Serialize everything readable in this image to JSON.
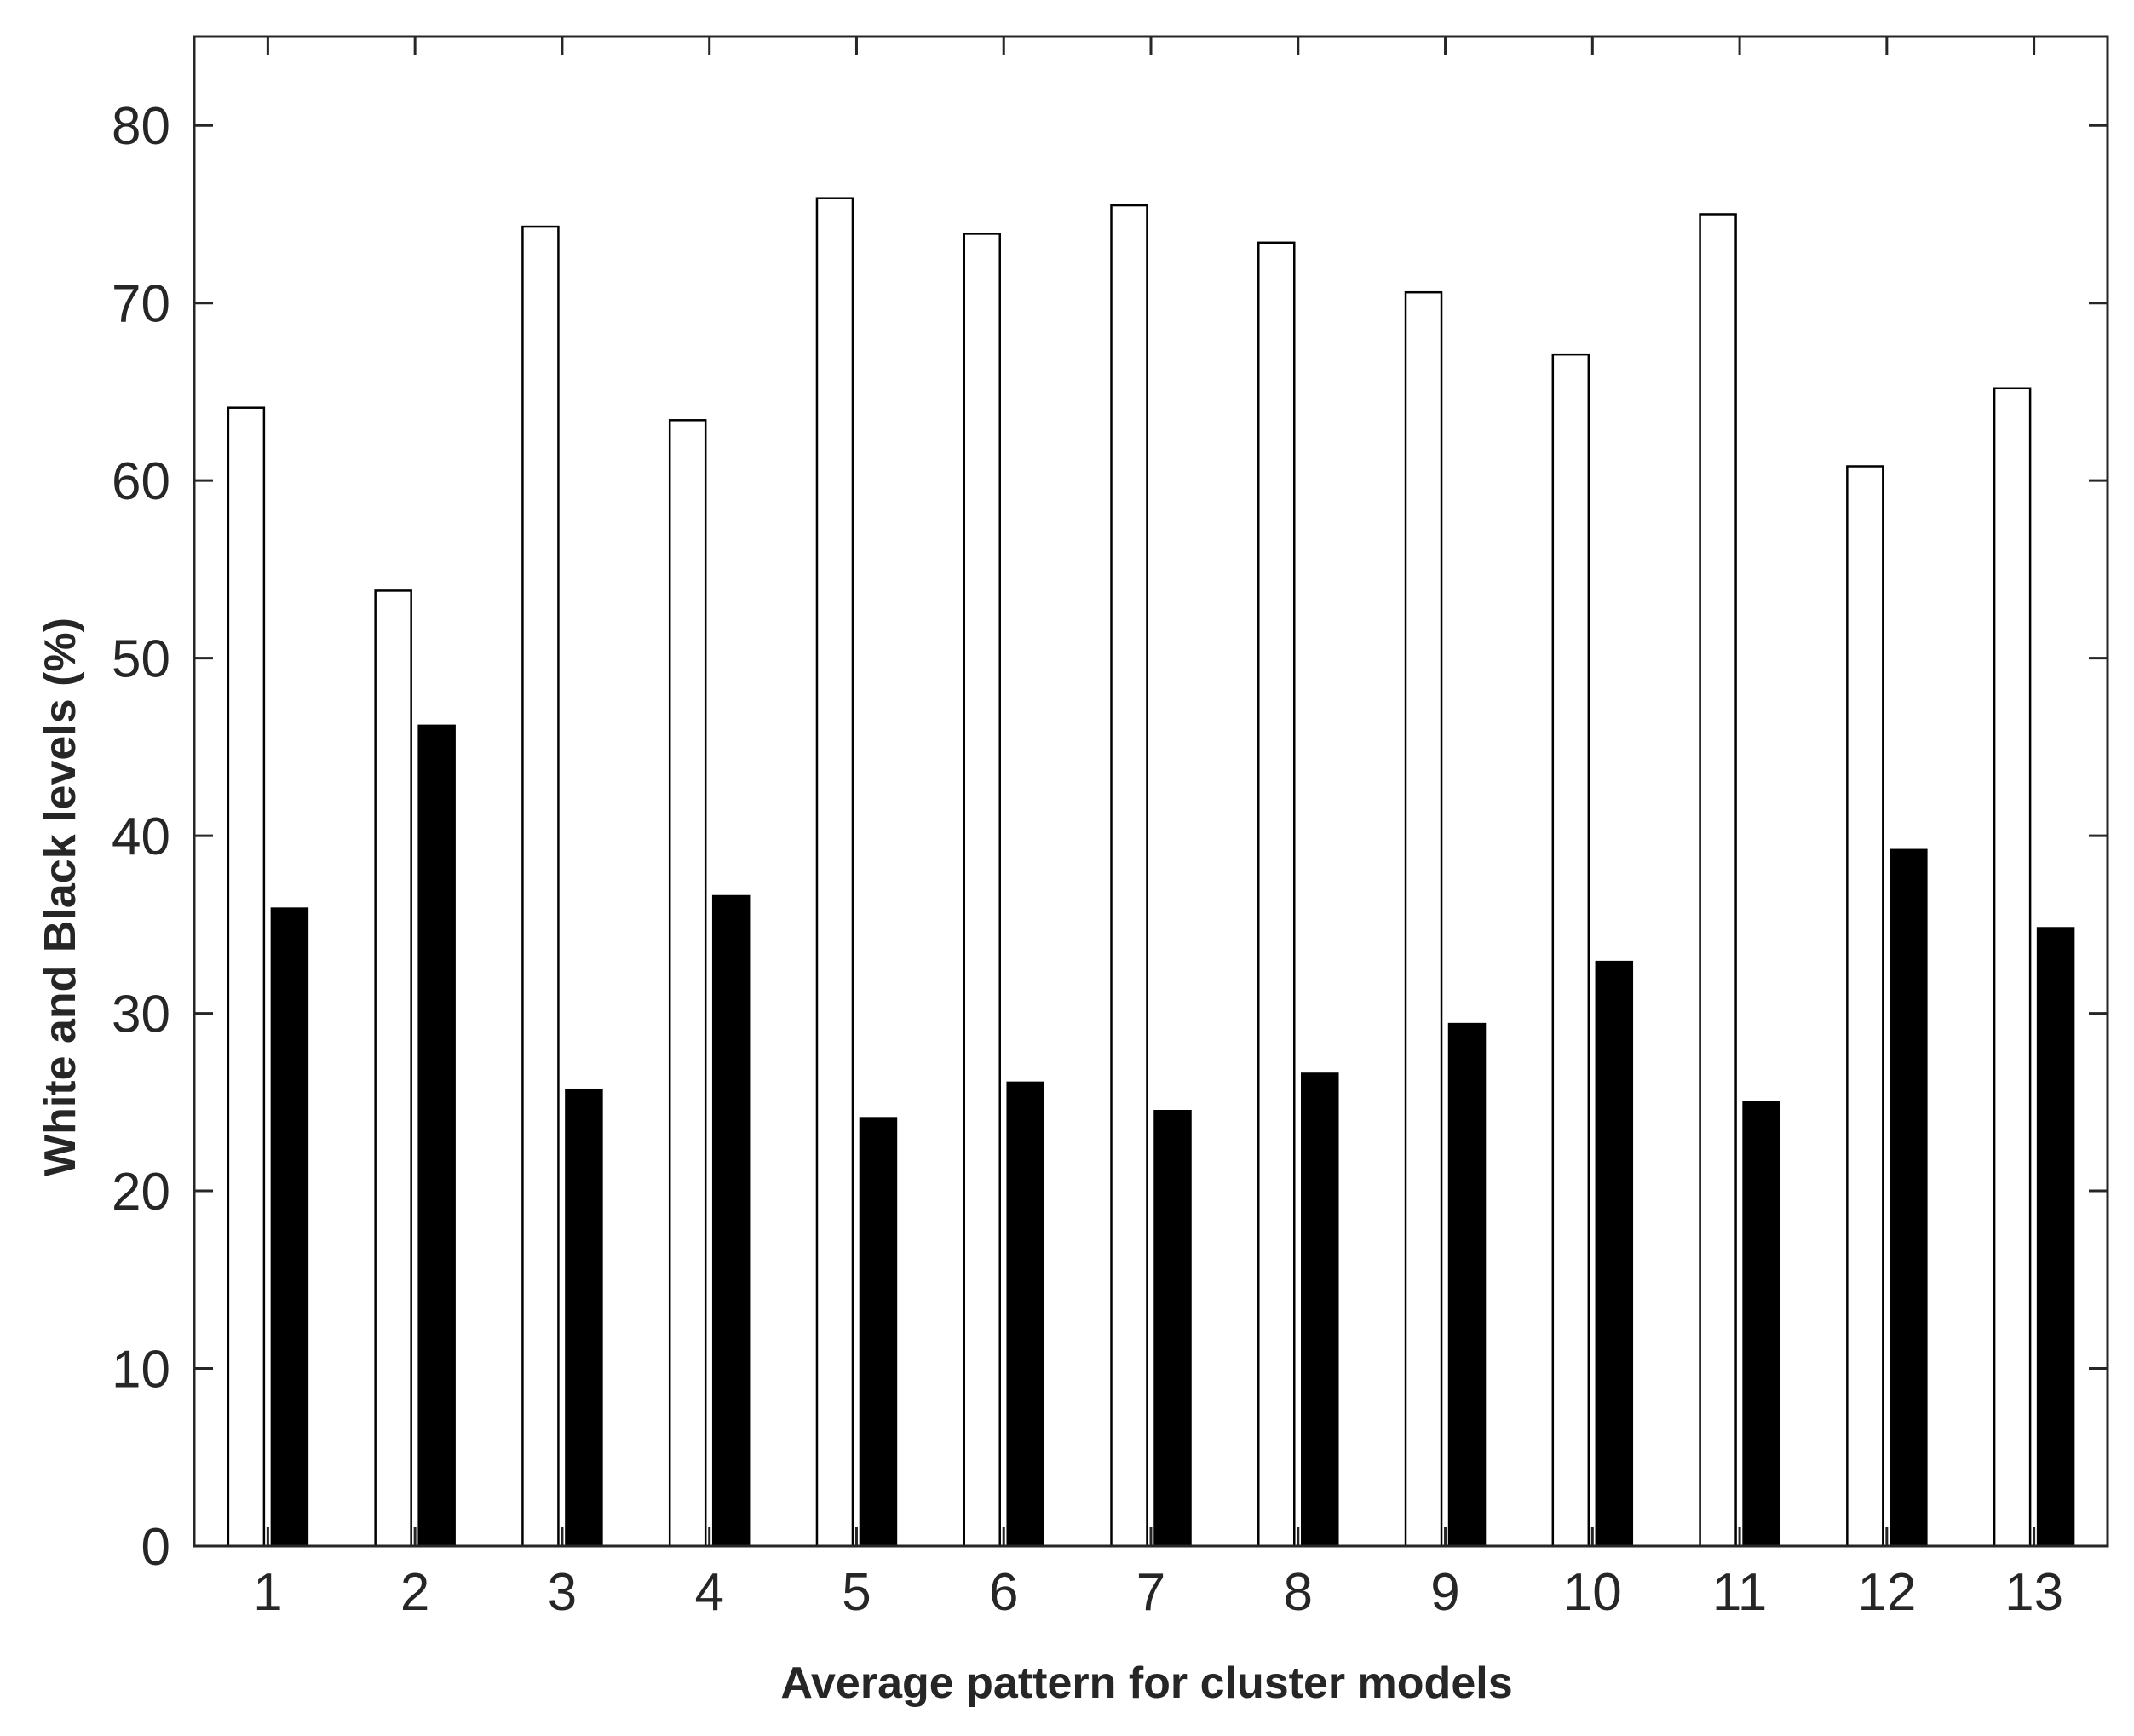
{
  "chart_data": {
    "type": "bar",
    "title": "",
    "xlabel": "Average pattern for cluster models",
    "ylabel": "White and Black levels (%)",
    "categories": [
      "1",
      "2",
      "3",
      "4",
      "5",
      "6",
      "7",
      "8",
      "9",
      "10",
      "11",
      "12",
      "13"
    ],
    "series": [
      {
        "color": "#ffffff",
        "values": [
          64.1,
          53.8,
          74.3,
          63.4,
          75.9,
          73.9,
          75.5,
          73.4,
          70.6,
          67.1,
          75.0,
          60.8,
          65.2
        ]
      },
      {
        "color": "#000000",
        "values": [
          35.9,
          46.2,
          25.7,
          36.6,
          24.1,
          26.1,
          24.5,
          26.6,
          29.4,
          32.9,
          25.0,
          39.2,
          34.8
        ]
      }
    ],
    "ylim": [
      0,
      85
    ],
    "yticks": [
      0,
      10,
      20,
      30,
      40,
      50,
      60,
      70,
      80
    ],
    "grid": false,
    "legend": "none"
  }
}
